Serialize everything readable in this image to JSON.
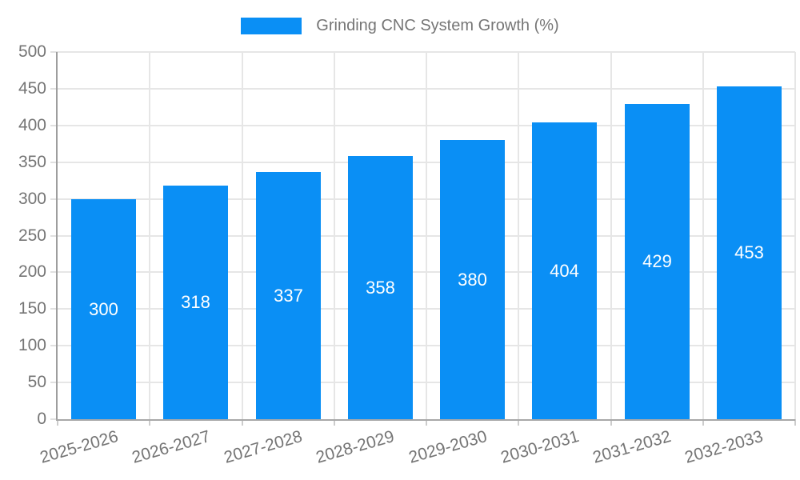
{
  "chart_data": {
    "type": "bar",
    "legend_label": "Grinding CNC System Growth (%)",
    "categories": [
      "2025-2026",
      "2026-2027",
      "2027-2028",
      "2028-2029",
      "2029-2030",
      "2030-2031",
      "2031-2032",
      "2032-2033"
    ],
    "values": [
      300,
      318,
      337,
      358,
      380,
      404,
      429,
      453
    ],
    "value_labels": [
      "300",
      "318",
      "337",
      "358",
      "380",
      "404",
      "429",
      "453"
    ],
    "ylim": [
      0,
      500
    ],
    "yticks": [
      0,
      50,
      100,
      150,
      200,
      250,
      300,
      350,
      400,
      450,
      500
    ],
    "grid": "on",
    "legend_position": "top-center",
    "colors": {
      "bar": "#0a8ff5",
      "value_label": "#ffffff",
      "axis_text": "#757575",
      "gridline": "#e6e6e6",
      "axis_line": "#9e9e9e",
      "background": "#ffffff"
    }
  }
}
